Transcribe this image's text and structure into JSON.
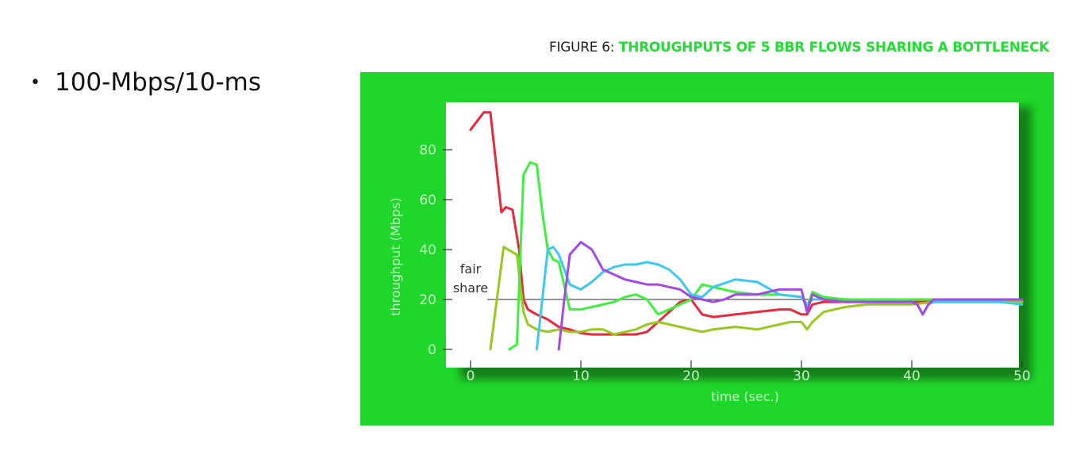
{
  "slide": {
    "bullet": "100-Mbps/10-ms"
  },
  "figure": {
    "title_prefix": "FIGURE 6:",
    "title_main": "THROUGHPUTS OF 5 BBR FLOWS SHARING A BOTTLENECK",
    "panel_color": "#1fd62a"
  },
  "chart_data": {
    "type": "line",
    "title": "FIGURE 6: THROUGHPUTS OF 5 BBR FLOWS SHARING A BOTTLENECK",
    "xlabel": "time (sec.)",
    "ylabel": "throughput (Mbps)",
    "xlim": [
      0,
      50
    ],
    "ylim": [
      0,
      95
    ],
    "xticks": [
      0,
      10,
      20,
      30,
      40,
      50
    ],
    "yticks": [
      0,
      20,
      40,
      60,
      80
    ],
    "grid": false,
    "annotation": {
      "text_line1": "fair",
      "text_line2": "share",
      "y": 20
    },
    "series": [
      {
        "color": "#e8283c",
        "x": [
          0,
          1.2,
          1.8,
          2.8,
          3.2,
          3.8,
          4.4,
          4.8,
          5.2,
          5.6,
          6,
          7,
          8,
          9,
          10,
          11,
          12,
          13,
          14,
          15,
          16,
          17,
          18,
          19,
          20,
          21,
          22,
          24,
          26,
          28,
          29,
          30,
          30.5,
          31,
          32,
          34,
          36,
          38,
          40,
          42,
          44,
          46,
          48,
          50
        ],
        "y": [
          88,
          95,
          95,
          55,
          57,
          56,
          40,
          20,
          16,
          15,
          14,
          12,
          9,
          8,
          6.5,
          6,
          6,
          6,
          6,
          6,
          7,
          11,
          15,
          19,
          20,
          14,
          13,
          14,
          15,
          16,
          16,
          14,
          14,
          18,
          19,
          19,
          19,
          19,
          19,
          19,
          19,
          19,
          19,
          19
        ]
      },
      {
        "color": "#96c81e",
        "x": [
          1.8,
          3,
          4.2,
          4.8,
          5.2,
          6,
          7,
          8,
          9,
          10,
          11,
          12,
          13,
          14,
          15,
          16,
          17,
          18,
          19,
          20,
          21,
          22,
          24,
          26,
          28,
          29,
          30,
          30.5,
          31,
          32,
          34,
          36,
          38,
          40,
          42,
          44,
          46,
          48,
          50
        ],
        "y": [
          0,
          41,
          38,
          15,
          10,
          8,
          7,
          8,
          7,
          7,
          8,
          8,
          6,
          7,
          8,
          10,
          11,
          10,
          9,
          8,
          7,
          8,
          9,
          8,
          10,
          11,
          11,
          8,
          11,
          15,
          17,
          18,
          18,
          18,
          19,
          19,
          19,
          19,
          19
        ]
      },
      {
        "color": "#3df03d",
        "x": [
          3.5,
          4.2,
          4.8,
          5.4,
          6,
          6.5,
          7,
          7.5,
          8,
          9,
          10,
          11,
          12,
          13,
          14,
          15,
          16,
          17,
          18,
          19,
          20,
          21,
          22,
          24,
          26,
          28,
          30,
          30.5,
          31,
          32,
          34,
          36,
          38,
          40,
          42,
          44,
          46,
          48,
          50
        ],
        "y": [
          0,
          2,
          70,
          75,
          74,
          55,
          40,
          36,
          35,
          16,
          16,
          17,
          18,
          19,
          21,
          22,
          20,
          14,
          16,
          18,
          20,
          26,
          25,
          23,
          22,
          22,
          21,
          17,
          23,
          21,
          20,
          20,
          20,
          20,
          20,
          20,
          20,
          20,
          20
        ]
      },
      {
        "color": "#3cc8f0",
        "x": [
          6,
          6.5,
          7,
          7.5,
          8,
          9,
          10,
          11,
          12,
          13,
          14,
          15,
          16,
          17,
          18,
          19,
          20,
          21,
          22,
          24,
          26,
          28,
          30,
          30.5,
          31,
          32,
          34,
          36,
          38,
          40,
          40.5,
          41,
          41.5,
          42,
          44,
          46,
          48,
          50
        ],
        "y": [
          0,
          20,
          40,
          41,
          38,
          26,
          24,
          27,
          31,
          33,
          34,
          34,
          35,
          34,
          32,
          28,
          22,
          21,
          25,
          28,
          27,
          22,
          21,
          18,
          20,
          20,
          19,
          19,
          19,
          19,
          18,
          14,
          18,
          19,
          19,
          19,
          19,
          18
        ]
      },
      {
        "color": "#a34ae6",
        "x": [
          8,
          8.5,
          9,
          10,
          11,
          12,
          13,
          14,
          15,
          16,
          17,
          18,
          19,
          20,
          21,
          22,
          23,
          24,
          26,
          28,
          30,
          30.5,
          31,
          32,
          34,
          36,
          38,
          40,
          40.5,
          41,
          41.5,
          42,
          44,
          46,
          48,
          50
        ],
        "y": [
          0,
          20,
          38,
          43,
          40,
          32,
          30,
          28,
          27,
          26,
          26,
          25,
          24,
          21,
          20,
          19,
          20,
          22,
          22,
          24,
          24,
          15,
          22,
          20,
          19,
          19,
          19,
          19,
          18,
          14,
          18,
          20,
          20,
          20,
          20,
          20
        ]
      }
    ]
  }
}
